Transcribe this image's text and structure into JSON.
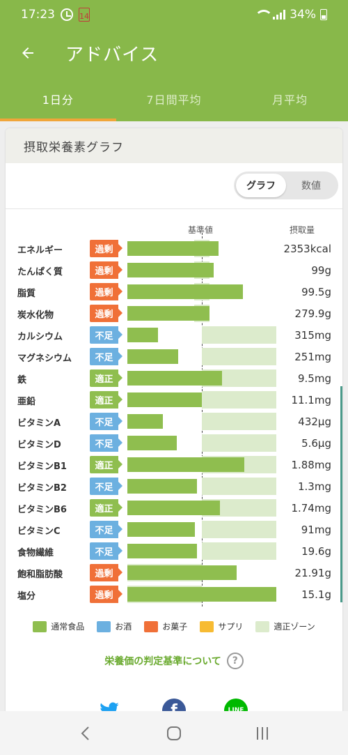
{
  "status_bar": {
    "time": "17:23",
    "calendar_day": "14",
    "battery": "34%"
  },
  "app_bar": {
    "title": "アドバイス"
  },
  "tabs": [
    {
      "label": "1日分",
      "active": true
    },
    {
      "label": "7日間平均",
      "active": false
    },
    {
      "label": "月平均",
      "active": false
    }
  ],
  "card": {
    "title": "摂取栄養素グラフ",
    "toggle": [
      {
        "label": "グラフ",
        "active": true
      },
      {
        "label": "数値",
        "active": false
      }
    ]
  },
  "chart_data": {
    "type": "bar",
    "orientation": "horizontal",
    "header_base": "基準値",
    "header_intake": "摂取量",
    "baseline_percent": 100,
    "axis_max_percent": 200,
    "rows": [
      {
        "name": "エネルギー",
        "status": "過剰",
        "status_type": "excess",
        "value_label": "2353kcal",
        "percent": 122,
        "zone": [
          90,
          110
        ]
      },
      {
        "name": "たんぱく質",
        "status": "過剰",
        "status_type": "excess",
        "value_label": "99g",
        "percent": 116,
        "zone": [
          90,
          110
        ]
      },
      {
        "name": "脂質",
        "status": "過剰",
        "status_type": "excess",
        "value_label": "99.5g",
        "percent": 155,
        "zone": [
          90,
          110
        ]
      },
      {
        "name": "炭水化物",
        "status": "過剰",
        "status_type": "excess",
        "value_label": "279.9g",
        "percent": 110,
        "zone": [
          90,
          110
        ]
      },
      {
        "name": "カルシウム",
        "status": "不足",
        "status_type": "short",
        "value_label": "315mg",
        "percent": 41,
        "zone": [
          100,
          200
        ]
      },
      {
        "name": "マグネシウム",
        "status": "不足",
        "status_type": "short",
        "value_label": "251mg",
        "percent": 68,
        "zone": [
          100,
          200
        ]
      },
      {
        "name": "鉄",
        "status": "適正",
        "status_type": "ok",
        "value_label": "9.5mg",
        "percent": 127,
        "zone": [
          100,
          200
        ]
      },
      {
        "name": "亜鉛",
        "status": "適正",
        "status_type": "ok",
        "value_label": "11.1mg",
        "percent": 100,
        "zone": [
          100,
          200
        ]
      },
      {
        "name": "ビタミンA",
        "status": "不足",
        "status_type": "short",
        "value_label": "432μg",
        "percent": 48,
        "zone": [
          100,
          200
        ]
      },
      {
        "name": "ビタミンD",
        "status": "不足",
        "status_type": "short",
        "value_label": "5.6μg",
        "percent": 66,
        "zone": [
          100,
          200
        ]
      },
      {
        "name": "ビタミンB1",
        "status": "適正",
        "status_type": "ok",
        "value_label": "1.88mg",
        "percent": 157,
        "zone": [
          100,
          200
        ]
      },
      {
        "name": "ビタミンB2",
        "status": "不足",
        "status_type": "short",
        "value_label": "1.3mg",
        "percent": 93,
        "zone": [
          100,
          200
        ]
      },
      {
        "name": "ビタミンB6",
        "status": "適正",
        "status_type": "ok",
        "value_label": "1.74mg",
        "percent": 124,
        "zone": [
          100,
          200
        ]
      },
      {
        "name": "ビタミンC",
        "status": "不足",
        "status_type": "short",
        "value_label": "91mg",
        "percent": 91,
        "zone": [
          100,
          200
        ]
      },
      {
        "name": "食物繊維",
        "status": "不足",
        "status_type": "short",
        "value_label": "19.6g",
        "percent": 93,
        "zone": [
          100,
          200
        ]
      },
      {
        "name": "飽和脂肪酸",
        "status": "過剰",
        "status_type": "excess",
        "value_label": "21.91g",
        "percent": 147,
        "zone": [
          0,
          100
        ]
      },
      {
        "name": "塩分",
        "status": "過剰",
        "status_type": "excess",
        "value_label": "15.1g",
        "percent": 200,
        "zone": [
          0,
          100
        ]
      }
    ]
  },
  "legend": [
    {
      "label": "通常食品",
      "color": "#8fbe4f"
    },
    {
      "label": "お酒",
      "color": "#6cb0e0"
    },
    {
      "label": "お菓子",
      "color": "#f07038"
    },
    {
      "label": "サプリ",
      "color": "#f7bb33"
    },
    {
      "label": "適正ゾーン",
      "color": "#dcebcc"
    }
  ],
  "criteria_link": "栄養価の判定基準について",
  "colors": {
    "excess": "#f07038",
    "short": "#6cb0e0",
    "ok": "#8fbe4f",
    "theme": "#88b84a",
    "tab_indicator": "#f0a53a"
  },
  "share_icons": [
    "twitter-icon",
    "facebook-icon",
    "line-icon"
  ],
  "share_labels": {
    "line": "LINE"
  }
}
